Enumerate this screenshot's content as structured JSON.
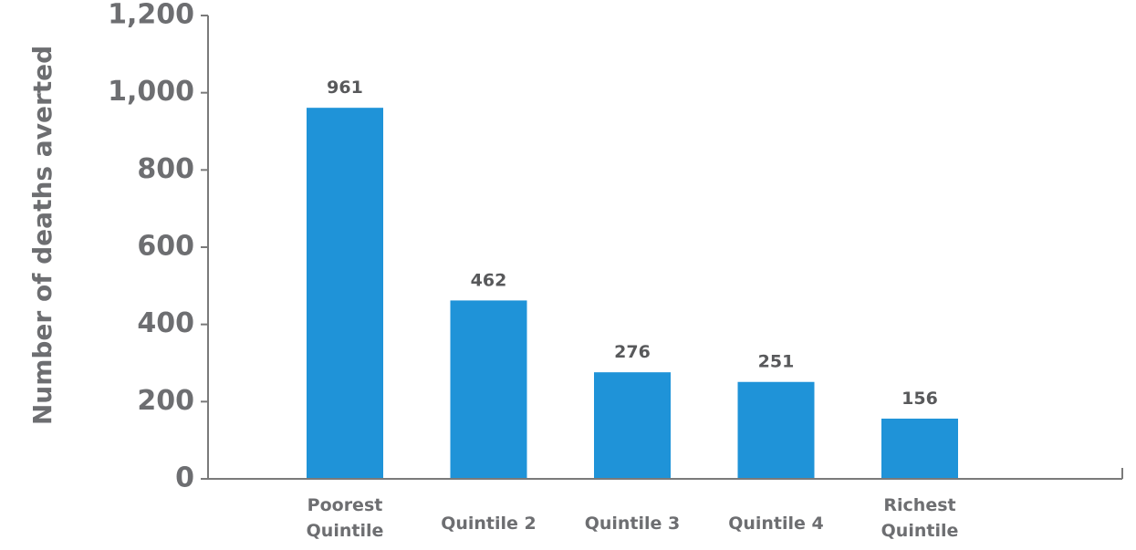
{
  "chart_data": {
    "type": "bar",
    "categories": [
      [
        "Poorest",
        "Quintile"
      ],
      [
        "Quintile 2"
      ],
      [
        "Quintile 3"
      ],
      [
        "Quintile 4"
      ],
      [
        "Richest",
        "Quintile"
      ]
    ],
    "values": [
      961,
      462,
      276,
      251,
      156
    ],
    "data_labels": [
      "961",
      "462",
      "276",
      "251",
      "156"
    ],
    "ylabel": "Number of deaths averted",
    "ylim": [
      0,
      1200
    ],
    "yticks": [
      0,
      200,
      400,
      600,
      800,
      1000,
      1200
    ],
    "ytick_labels": [
      "0",
      "200",
      "400",
      "600",
      "800",
      "1,000",
      "1,200"
    ],
    "grid": false,
    "bar_color": "#1f93d8",
    "axis_color": "#7a7a7a",
    "text_color": "#6d6e71"
  }
}
